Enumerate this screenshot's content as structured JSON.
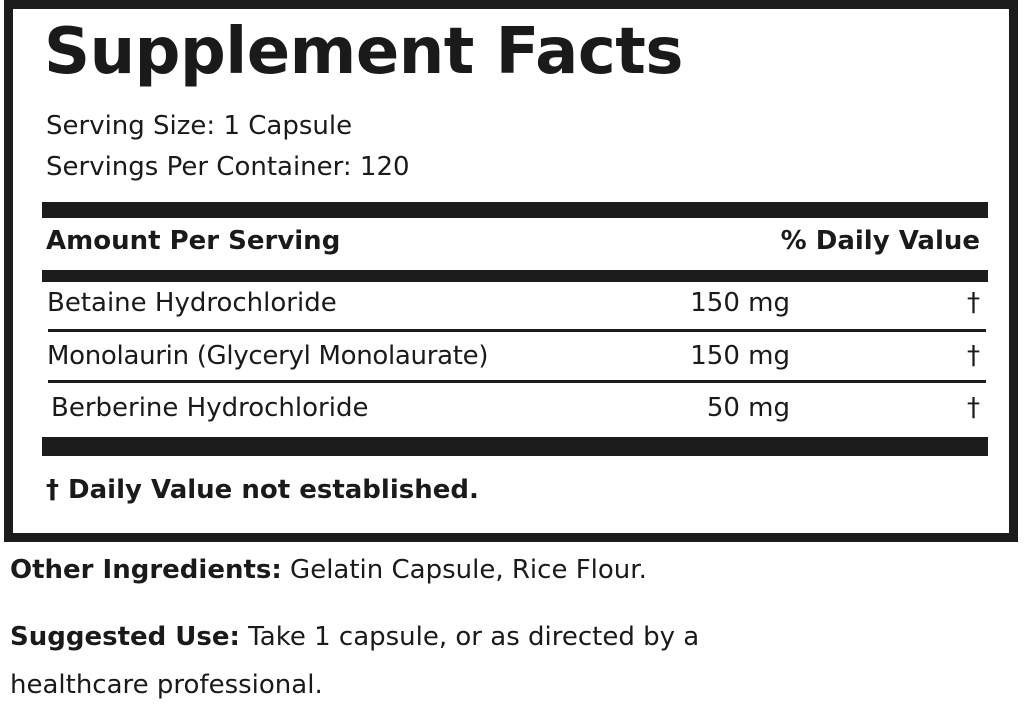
{
  "title": "Supplement Facts",
  "serving_size": "Serving Size: 1 Capsule",
  "servings_per_container": "Servings Per Container: 120",
  "header": {
    "amount": "Amount Per Serving",
    "dv": "% Daily Value"
  },
  "rows": [
    {
      "name": "Betaine Hydrochloride",
      "amount": "150 mg",
      "dv": "†"
    },
    {
      "name": "Monolaurin (Glyceryl Monolaurate)",
      "amount": "150 mg",
      "dv": "†"
    },
    {
      "name": "Berberine Hydrochloride",
      "amount": "50 mg",
      "dv": "†"
    }
  ],
  "footnote": "† Daily Value not established.",
  "other": {
    "label": "Other Ingredients:",
    "text": " Gelatin Capsule, Rice Flour."
  },
  "use": {
    "label": "Suggested Use:",
    "text": " Take 1 capsule, or as directed by a",
    "text2": "healthcare professional."
  }
}
